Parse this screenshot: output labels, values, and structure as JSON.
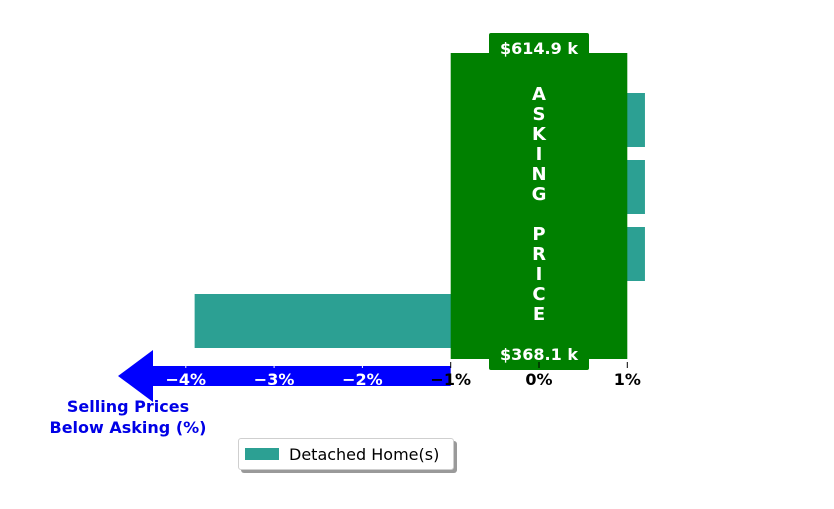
{
  "chart_data": {
    "type": "bar",
    "orientation": "horizontal",
    "xlim": [
      -4.7,
      1.2
    ],
    "xticks": [
      -4,
      -3,
      -2,
      -1,
      0,
      1
    ],
    "xtick_labels": [
      "−4%",
      "−3%",
      "−2%",
      "−1%",
      "0%",
      "1%"
    ],
    "series": [
      {
        "name": "Detached Home(s)",
        "values": [
          1.2,
          1.2,
          1.2,
          -3.9
        ]
      }
    ],
    "asking_price_band": {
      "x_range": [
        -1,
        1
      ],
      "label": "ASKING PRICE",
      "top_value": "$614.9 k",
      "bottom_value": "$368.1 k"
    },
    "below_label": [
      "Selling Prices",
      "Below Asking (%)"
    ],
    "legend": {
      "placement": "bottom-center"
    }
  },
  "colors": {
    "bar": "#2ca093",
    "band": "#008000",
    "arrow": "#0000ff",
    "below_text": "#0000e6"
  }
}
